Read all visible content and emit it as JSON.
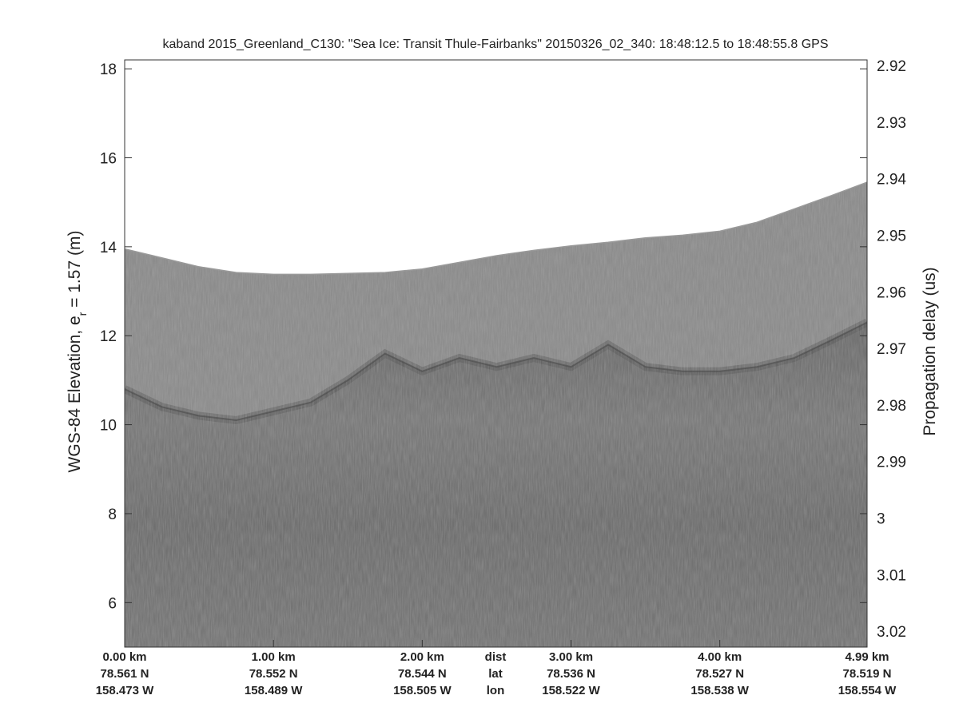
{
  "chart_data": {
    "type": "echogram",
    "title": "kaband 2015_Greenland_C130: \"Sea Ice: Transit Thule-Fairbanks\"  20150326_02_340: 18:48:12.5 to 18:48:55.8 GPS",
    "ylabel_parts": [
      "WGS-84 Elevation, e",
      "r",
      " = 1.57 (m)"
    ],
    "y2label": "Propagation delay (us)",
    "xlim": [
      0,
      4.99
    ],
    "ylim": [
      5,
      18.2
    ],
    "yticks": [
      6,
      8,
      10,
      12,
      14,
      16,
      18
    ],
    "y2lim": [
      3.0228,
      2.919
    ],
    "y2ticks": [
      2.92,
      2.93,
      2.94,
      2.95,
      2.96,
      2.97,
      2.98,
      2.99,
      3,
      3.01,
      3.02
    ],
    "xticks": [
      {
        "value": 0,
        "label": "0.00 km"
      },
      {
        "value": 1,
        "label": "1.00 km"
      },
      {
        "value": 2,
        "label": "2.00 km"
      },
      {
        "value": 3,
        "label": "3.00 km"
      },
      {
        "value": 4,
        "label": "4.00 km"
      },
      {
        "value": 4.99,
        "label": "4.99 km"
      }
    ],
    "xtick_lat": [
      "78.561 N",
      "78.552 N",
      "78.544 N",
      "78.536 N",
      "78.527 N",
      "78.519 N"
    ],
    "xtick_lon": [
      "158.473 W",
      "158.489 W",
      "158.505 W",
      "158.522 W",
      "158.538 W",
      "158.554 W"
    ],
    "row_labels": [
      "dist",
      "lat",
      "lon"
    ],
    "x": [
      0,
      0.25,
      0.5,
      0.75,
      1,
      1.25,
      1.5,
      1.75,
      2,
      2.25,
      2.5,
      2.75,
      3,
      3.25,
      3.5,
      3.75,
      4,
      4.25,
      4.5,
      4.75,
      4.99
    ],
    "surface": [
      13.95,
      13.75,
      13.55,
      13.42,
      13.38,
      13.38,
      13.4,
      13.42,
      13.5,
      13.65,
      13.8,
      13.92,
      14.02,
      14.1,
      14.2,
      14.26,
      14.35,
      14.55,
      14.85,
      15.15,
      15.45
    ],
    "interface": [
      10.8,
      10.4,
      10.2,
      10.1,
      10.3,
      10.5,
      11.0,
      11.6,
      11.2,
      11.5,
      11.3,
      11.5,
      11.3,
      11.8,
      11.3,
      11.2,
      11.2,
      11.3,
      11.5,
      11.9,
      12.3
    ],
    "color": "#8c8c8c"
  }
}
